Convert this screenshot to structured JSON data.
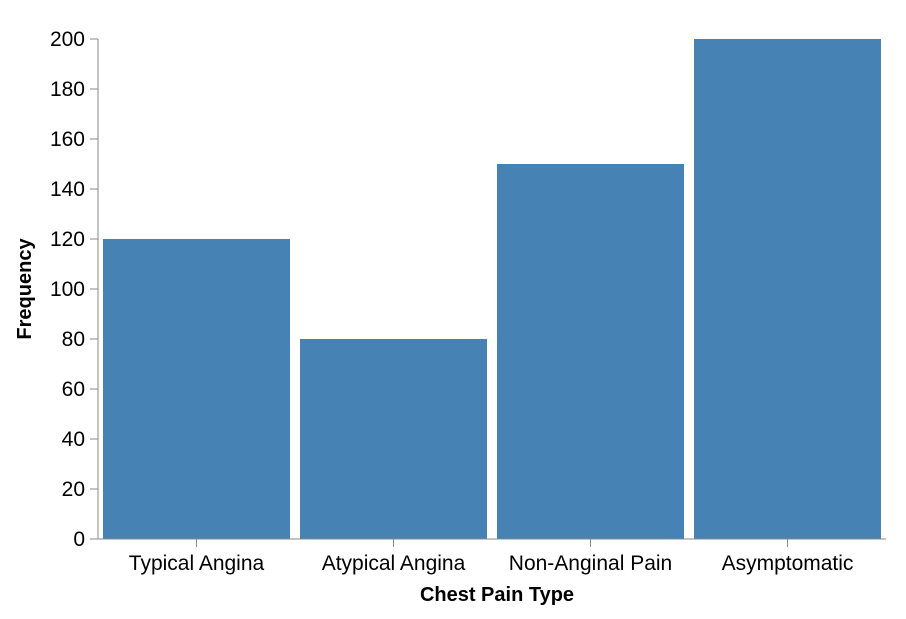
{
  "chart_data": {
    "type": "bar",
    "title": "",
    "xlabel": "Chest Pain Type",
    "ylabel": "Frequency",
    "categories": [
      "Typical Angina",
      "Atypical Angina",
      "Non-Anginal Pain",
      "Asymptomatic"
    ],
    "values": [
      120,
      80,
      150,
      200
    ],
    "ylim": [
      0,
      200
    ],
    "yticks": [
      0,
      20,
      40,
      60,
      80,
      100,
      120,
      140,
      160,
      180,
      200
    ],
    "grid": false,
    "legend": "none",
    "bar_color": "#4682b4",
    "axis_color": "#888888"
  }
}
